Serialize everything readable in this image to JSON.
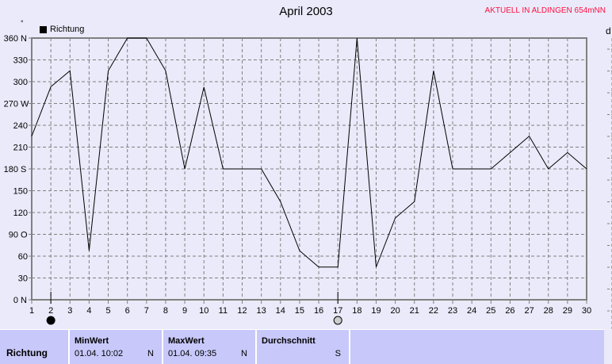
{
  "title": "April 2003",
  "current_label": "AKTUELL IN ALDINGEN 654mNN",
  "right_panel_label": "d",
  "chart_data": {
    "type": "line",
    "title": "April 2003",
    "legend": "top-left",
    "grid": true,
    "xlim": [
      1,
      30
    ],
    "ylim": [
      0,
      360
    ],
    "x": [
      1,
      2,
      3,
      4,
      5,
      6,
      7,
      8,
      9,
      10,
      11,
      12,
      13,
      14,
      15,
      16,
      17,
      18,
      19,
      20,
      21,
      22,
      23,
      24,
      25,
      26,
      27,
      28,
      29,
      30
    ],
    "series": [
      {
        "name": "Richtung",
        "color": "#000000",
        "values": [
          225,
          293,
          315,
          67.5,
          315,
          360,
          360,
          315,
          180,
          292.5,
          180,
          180,
          180,
          135,
          67.5,
          45,
          45,
          360,
          45,
          112.5,
          135,
          315,
          180,
          180,
          180,
          202.5,
          225,
          180,
          202.5,
          180
        ]
      }
    ],
    "y_ticks": [
      {
        "v": 0,
        "label": "0",
        "dir": "N"
      },
      {
        "v": 30,
        "label": "30",
        "dir": ""
      },
      {
        "v": 60,
        "label": "60",
        "dir": ""
      },
      {
        "v": 90,
        "label": "90",
        "dir": "O"
      },
      {
        "v": 120,
        "label": "120",
        "dir": ""
      },
      {
        "v": 150,
        "label": "150",
        "dir": ""
      },
      {
        "v": 180,
        "label": "180",
        "dir": "S"
      },
      {
        "v": 210,
        "label": "210",
        "dir": ""
      },
      {
        "v": 240,
        "label": "240",
        "dir": ""
      },
      {
        "v": 270,
        "label": "270",
        "dir": "W"
      },
      {
        "v": 300,
        "label": "300",
        "dir": ""
      },
      {
        "v": 330,
        "label": "330",
        "dir": ""
      },
      {
        "v": 360,
        "label": "360",
        "dir": "N"
      }
    ],
    "ylabel": "°",
    "moon_phases": [
      {
        "day": 2,
        "phase": "new-moon"
      },
      {
        "day": 17,
        "phase": "full-moon"
      }
    ]
  },
  "table": {
    "row_label": "Richtung",
    "columns": [
      {
        "header": "MinWert",
        "date": "01.04.  10:02",
        "value": "N"
      },
      {
        "header": "MaxWert",
        "date": "01.04.  09:35",
        "value": "N"
      },
      {
        "header": "Durchschnitt",
        "date": "",
        "value": "S"
      }
    ]
  }
}
